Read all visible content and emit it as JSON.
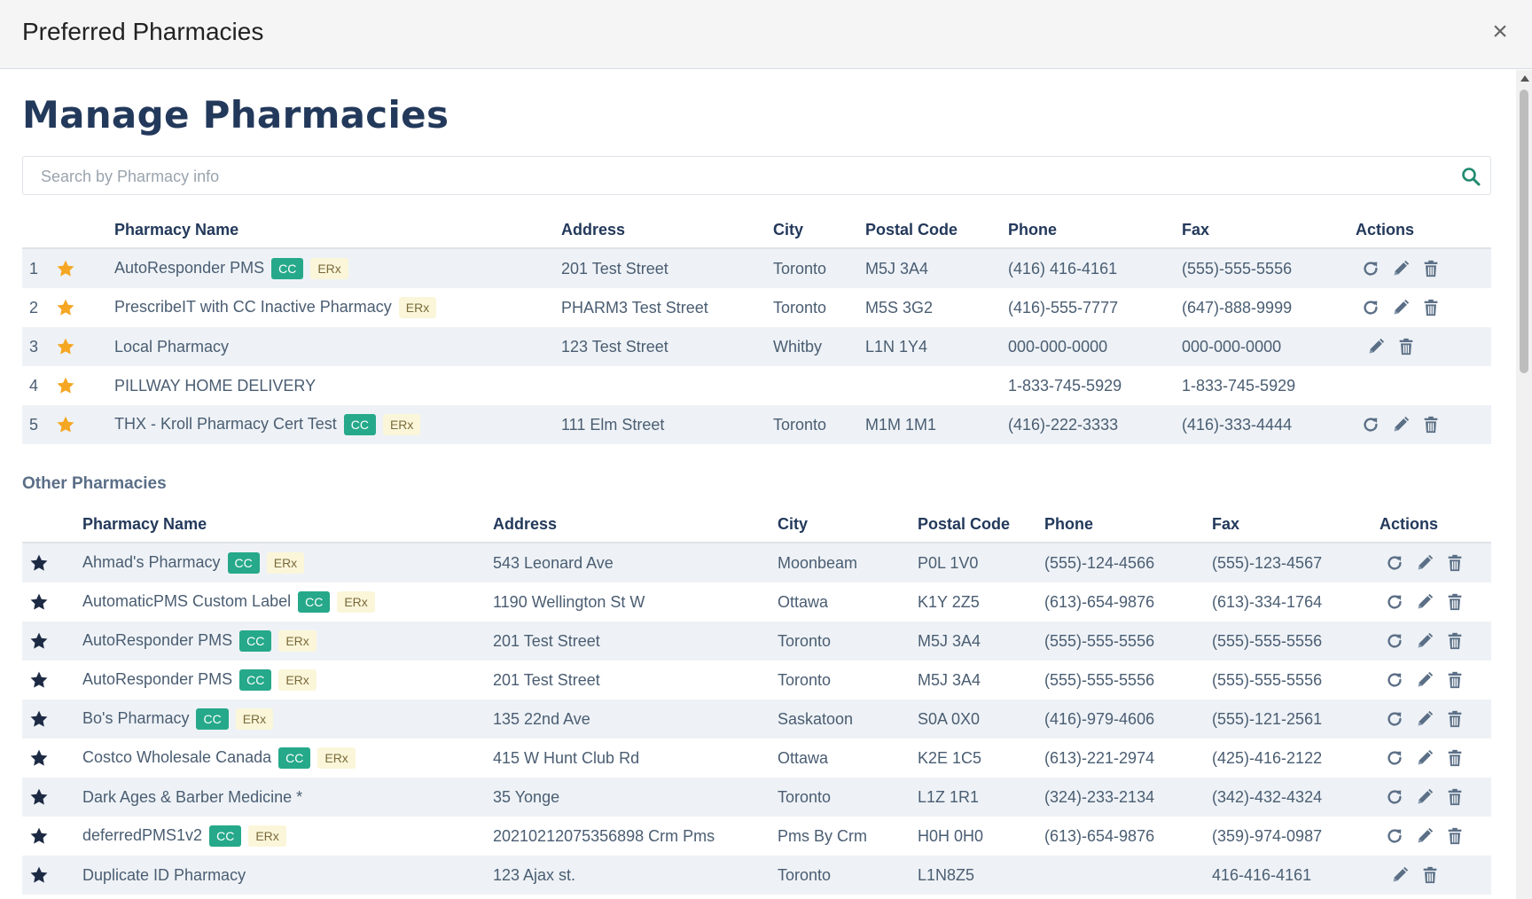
{
  "modal": {
    "title": "Preferred Pharmacies",
    "close_label": "×"
  },
  "page": {
    "heading": "Manage Pharmacies"
  },
  "search": {
    "placeholder": "Search by Pharmacy info"
  },
  "colors": {
    "heading": "#23395b",
    "cc_badge": "#26a98a",
    "erx_badge": "#fbf6d9",
    "star_preferred": "#f5a623",
    "star_other": "#1d2a44",
    "search_icon": "#1f8a70"
  },
  "preferred": {
    "headers": {
      "name": "Pharmacy Name",
      "address": "Address",
      "city": "City",
      "postal": "Postal Code",
      "phone": "Phone",
      "fax": "Fax",
      "actions": "Actions"
    },
    "rows": [
      {
        "num": "1",
        "name": "AutoResponder PMS",
        "cc": "CC",
        "erx": "ERx",
        "address": "201 Test Street",
        "city": "Toronto",
        "postal": "M5J 3A4",
        "phone": "(416) 416-4161",
        "fax": "(555)-555-5556",
        "refresh": true
      },
      {
        "num": "2",
        "name": "PrescribeIT with CC Inactive Pharmacy",
        "cc": "",
        "erx": "ERx",
        "address": "PHARM3 Test Street",
        "city": "Toronto",
        "postal": "M5S 3G2",
        "phone": "(416)-555-7777",
        "fax": "(647)-888-9999",
        "refresh": true
      },
      {
        "num": "3",
        "name": "Local Pharmacy",
        "cc": "",
        "erx": "",
        "address": "123 Test Street",
        "city": "Whitby",
        "postal": "L1N 1Y4",
        "phone": "000-000-0000",
        "fax": "000-000-0000",
        "refresh": false
      },
      {
        "num": "4",
        "name": "PILLWAY HOME DELIVERY",
        "cc": "",
        "erx": "",
        "address": "",
        "city": "",
        "postal": "",
        "phone": "1-833-745-5929",
        "fax": "1-833-745-5929",
        "refresh": false,
        "no_actions": true
      },
      {
        "num": "5",
        "name": "THX - Kroll Pharmacy Cert Test",
        "cc": "CC",
        "erx": "ERx",
        "address": "111 Elm Street",
        "city": "Toronto",
        "postal": "M1M 1M1",
        "phone": "(416)-222-3333",
        "fax": "(416)-333-4444",
        "refresh": true
      }
    ]
  },
  "other": {
    "section_title": "Other Pharmacies",
    "headers": {
      "name": "Pharmacy Name",
      "address": "Address",
      "city": "City",
      "postal": "Postal Code",
      "phone": "Phone",
      "fax": "Fax",
      "actions": "Actions"
    },
    "rows": [
      {
        "name": "Ahmad's Pharmacy",
        "cc": "CC",
        "erx": "ERx",
        "address": "543 Leonard Ave",
        "city": "Moonbeam",
        "postal": "P0L 1V0",
        "phone": "(555)-124-4566",
        "fax": "(555)-123-4567",
        "refresh": true
      },
      {
        "name": "AutomaticPMS Custom Label",
        "cc": "CC",
        "erx": "ERx",
        "address": "1190 Wellington St W",
        "city": "Ottawa",
        "postal": "K1Y 2Z5",
        "phone": "(613)-654-9876",
        "fax": "(613)-334-1764",
        "refresh": true
      },
      {
        "name": "AutoResponder PMS",
        "cc": "CC",
        "erx": "ERx",
        "address": "201 Test Street",
        "city": "Toronto",
        "postal": "M5J 3A4",
        "phone": "(555)-555-5556",
        "fax": "(555)-555-5556",
        "refresh": true
      },
      {
        "name": "AutoResponder PMS",
        "cc": "CC",
        "erx": "ERx",
        "address": "201 Test Street",
        "city": "Toronto",
        "postal": "M5J 3A4",
        "phone": "(555)-555-5556",
        "fax": "(555)-555-5556",
        "refresh": true
      },
      {
        "name": "Bo's Pharmacy",
        "cc": "CC",
        "erx": "ERx",
        "address": "135 22nd Ave",
        "city": "Saskatoon",
        "postal": "S0A 0X0",
        "phone": "(416)-979-4606",
        "fax": "(555)-121-2561",
        "refresh": true
      },
      {
        "name": "Costco Wholesale Canada",
        "cc": "CC",
        "erx": "ERx",
        "address": "415 W Hunt Club Rd",
        "city": "Ottawa",
        "postal": "K2E 1C5",
        "phone": "(613)-221-2974",
        "fax": "(425)-416-2122",
        "refresh": true
      },
      {
        "name": "Dark Ages & Barber Medicine *",
        "cc": "",
        "erx": "",
        "address": "35 Yonge",
        "city": "Toronto",
        "postal": "L1Z 1R1",
        "phone": "(324)-233-2134",
        "fax": "(342)-432-4324",
        "refresh": true
      },
      {
        "name": "deferredPMS1v2",
        "cc": "CC",
        "erx": "ERx",
        "address": "20210212075356898 Crm Pms",
        "city": "Pms By Crm",
        "postal": "H0H 0H0",
        "phone": "(613)-654-9876",
        "fax": "(359)-974-0987",
        "refresh": true
      },
      {
        "name": "Duplicate ID Pharmacy",
        "cc": "",
        "erx": "",
        "address": "123 Ajax st.",
        "city": "Toronto",
        "postal": "L1N8Z5",
        "phone": "",
        "fax": "416-416-4161",
        "refresh": false
      }
    ]
  }
}
